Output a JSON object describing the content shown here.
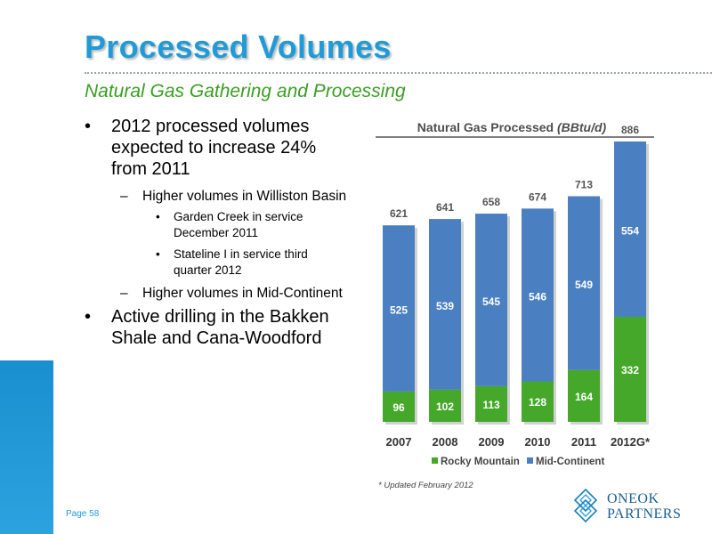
{
  "slide": {
    "title": "Processed Volumes",
    "subtitle": "Natural Gas Gathering and Processing",
    "page": "Page 58",
    "bullets": [
      {
        "level": 1,
        "lines": [
          "2012 processed volumes",
          "expected to increase 24%",
          "from 2011"
        ]
      },
      {
        "level": 2,
        "lines": [
          "Higher volumes in Williston Basin"
        ]
      },
      {
        "level": 3,
        "lines": [
          "Garden Creek in service",
          "December 2011"
        ]
      },
      {
        "level": 3,
        "lines": [
          "Stateline I in service third",
          "quarter 2012"
        ]
      },
      {
        "level": 2,
        "lines": [
          "Higher volumes in Mid-Continent"
        ]
      },
      {
        "level": 1,
        "lines": [
          "Active drilling in the Bakken",
          "Shale and Cana-Woodford"
        ]
      }
    ],
    "logo": {
      "line1": "ONEOK",
      "line2": "PARTNERS"
    }
  },
  "chart_data": {
    "type": "bar",
    "stacked": true,
    "title": "Natural Gas Processed",
    "title_unit": "(BBtu/d)",
    "categories": [
      "2007",
      "2008",
      "2009",
      "2010",
      "2011",
      "2012G*"
    ],
    "series": [
      {
        "name": "Rocky Mountain",
        "values": [
          96,
          102,
          113,
          128,
          164,
          332
        ],
        "color": "#45a82a"
      },
      {
        "name": "Mid-Continent",
        "values": [
          525,
          539,
          545,
          546,
          549,
          554
        ],
        "color": "#4a7fc1"
      }
    ],
    "totals": [
      621,
      641,
      658,
      674,
      713,
      886
    ],
    "ylim": [
      0,
      900
    ],
    "grid": false,
    "legend": "bottom",
    "footnote": "* Updated February 2012"
  }
}
